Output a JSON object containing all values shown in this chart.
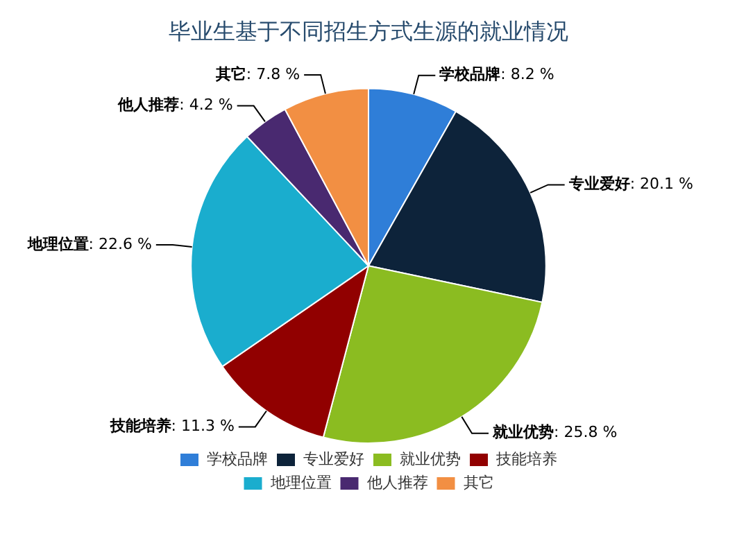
{
  "chart_data": {
    "type": "pie",
    "title": "毕业生基于不同招生方式生源的就业情况",
    "categories": [
      "学校品牌",
      "专业爱好",
      "就业优势",
      "技能培养",
      "地理位置",
      "他人推荐",
      "其它"
    ],
    "values": [
      8.2,
      20.1,
      25.8,
      11.3,
      22.6,
      4.2,
      7.8
    ],
    "colors": [
      "#2f7ed8",
      "#0d233a",
      "#8bbc21",
      "#910000",
      "#1aadce",
      "#492970",
      "#f28f43"
    ],
    "value_labels": [
      ": 8.2 %",
      ": 20.1 %",
      ": 25.8 %",
      ": 11.3 %",
      ": 22.6 %",
      ": 4.2 %",
      ": 7.8 %"
    ],
    "legend": "bottom"
  }
}
